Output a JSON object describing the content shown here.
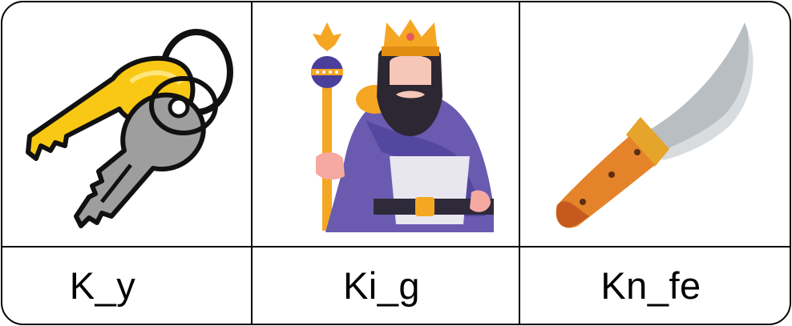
{
  "worksheet": {
    "cards": [
      {
        "picture": "keys-icon",
        "word": "K_y"
      },
      {
        "picture": "king-icon",
        "word": "Ki_g"
      },
      {
        "picture": "knife-icon",
        "word": "Kn_fe"
      }
    ]
  },
  "colors": {
    "border": "#000000",
    "key_gold": "#F9C814",
    "key_grey": "#9E9E9E",
    "king_robe": "#6A5BB0",
    "king_gold": "#F5A623",
    "knife_handle": "#E5832A",
    "knife_blade": "#B9BEC2"
  }
}
